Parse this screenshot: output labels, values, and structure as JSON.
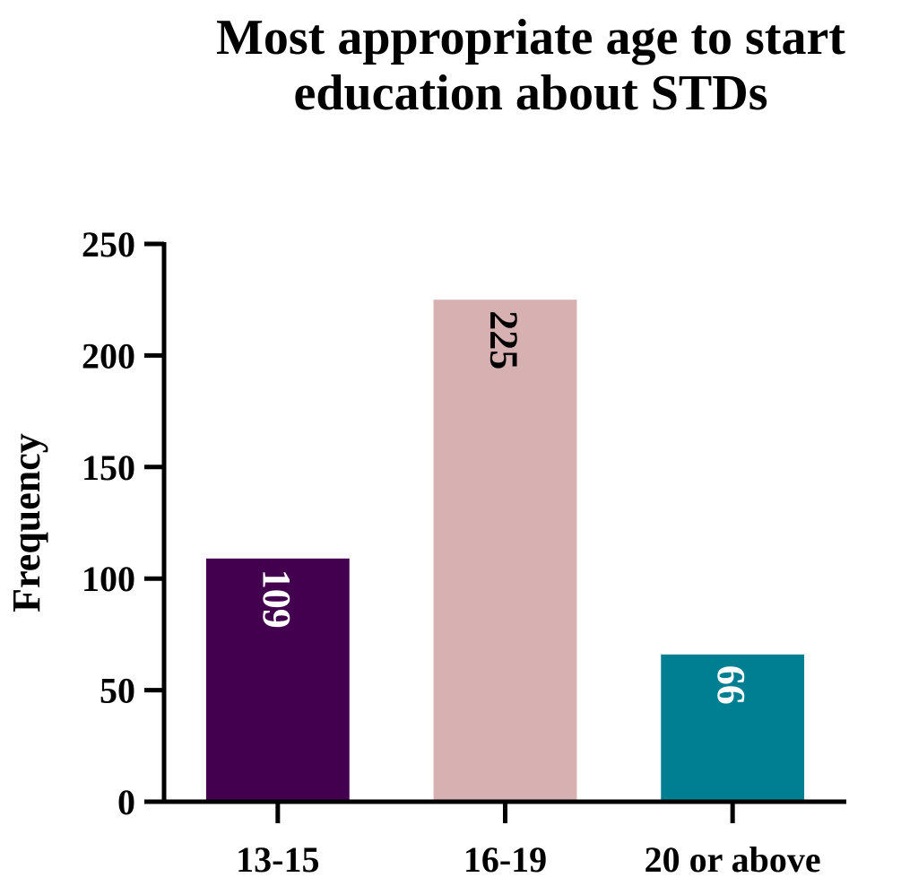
{
  "chart_data": {
    "type": "bar",
    "title_lines": [
      "Most appropriate age to start",
      "education about STDs"
    ],
    "xlabel": "",
    "ylabel": "Frequency",
    "ylim": [
      0,
      250
    ],
    "yticks": [
      "0",
      "50",
      "100",
      "150",
      "200",
      "250"
    ],
    "grid": false,
    "categories": [
      "13-15",
      "16-19",
      "20 or above"
    ],
    "values": [
      109,
      225,
      66
    ],
    "value_labels": [
      "109",
      "225",
      "66"
    ],
    "bar_colors": [
      "#42004f",
      "#d7b0b1",
      "#017f92"
    ],
    "value_label_colors": [
      "#ffffff",
      "#000000",
      "#ffffff"
    ]
  }
}
